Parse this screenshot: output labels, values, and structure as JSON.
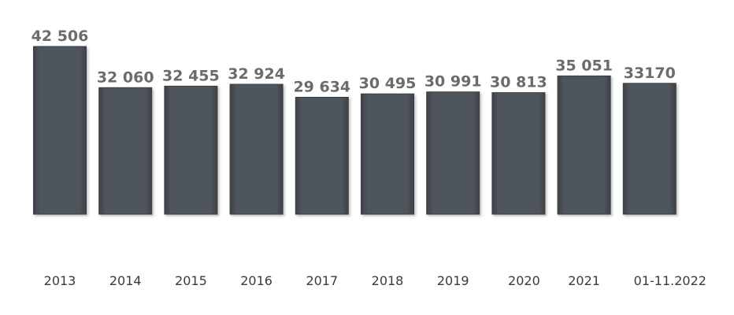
{
  "chart_data": {
    "type": "bar",
    "categories": [
      "2013",
      "2014",
      "2015",
      "2016",
      "2017",
      "2018",
      "2019",
      "2020",
      "2021",
      "01-11.2022"
    ],
    "values": [
      42506,
      32060,
      32455,
      32924,
      29634,
      30495,
      30991,
      30813,
      35051,
      33170
    ],
    "value_labels": [
      "42 506",
      "32 060",
      "32 455",
      "32 924",
      "29 634",
      "30 495",
      "30 991",
      "30 813",
      "35 051",
      "33170"
    ],
    "title": "",
    "xlabel": "",
    "ylabel": "",
    "ylim": [
      0,
      42506
    ],
    "grid": false,
    "legend": "none",
    "colors": {
      "bar": "#4f545b",
      "bar_edge": "#3b3f45",
      "value_label": "#6b6b6b",
      "category_label": "#3a3a3a"
    }
  }
}
